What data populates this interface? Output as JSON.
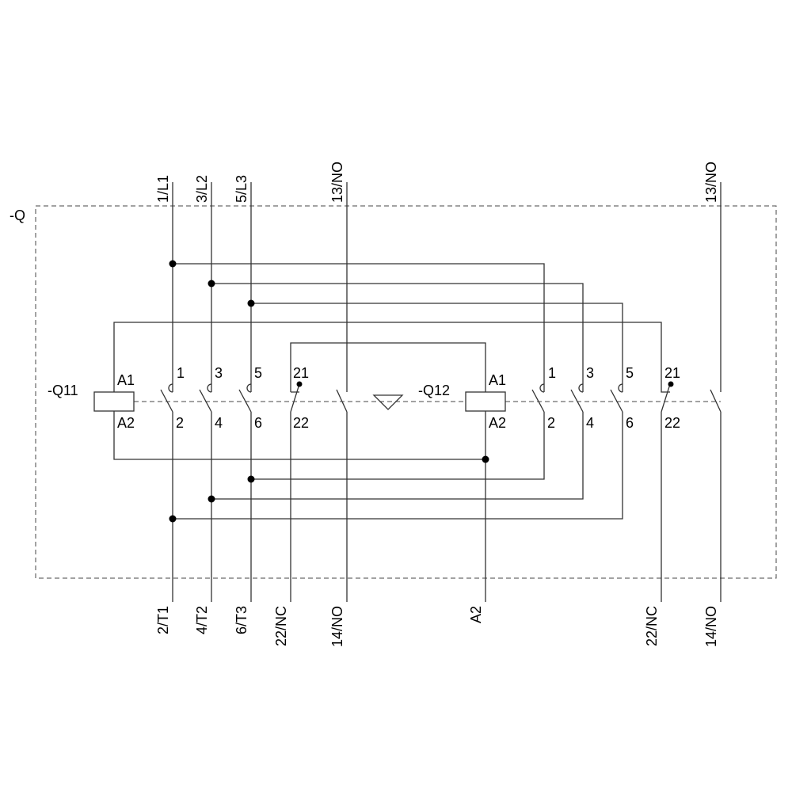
{
  "device_label": "-Q",
  "contactor_1": {
    "name": "-Q11",
    "coil_top": "A1",
    "coil_bottom": "A2",
    "contacts_top": [
      "1",
      "3",
      "5",
      "21"
    ],
    "contacts_bottom": [
      "2",
      "4",
      "6",
      "22"
    ]
  },
  "contactor_2": {
    "name": "-Q12",
    "coil_top": "A1",
    "coil_bottom": "A2",
    "contacts_top": [
      "1",
      "3",
      "5",
      "21"
    ],
    "contacts_bottom": [
      "2",
      "4",
      "6",
      "22"
    ]
  },
  "terminals_top": [
    "1/L1",
    "3/L2",
    "5/L3",
    "13/NO",
    "13/NO"
  ],
  "terminals_bottom": [
    "2/T1",
    "4/T2",
    "6/T3",
    "22/NC",
    "14/NO",
    "A2",
    "22/NC",
    "14/NO"
  ],
  "colors": {
    "line": "#333333",
    "background": "#ffffff"
  }
}
